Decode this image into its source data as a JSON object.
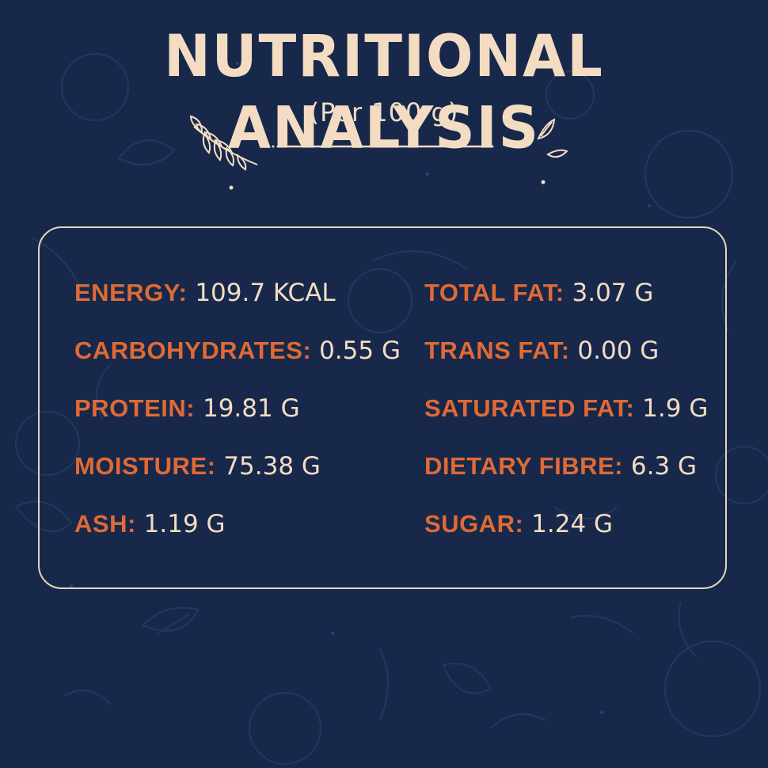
{
  "header": {
    "title": "NUTRITIONAL ANALYSIS",
    "subtitle": "(Per 100 g)"
  },
  "nutrients": {
    "left": [
      {
        "label": "ENERGY:",
        "value": "109.7 KCAL"
      },
      {
        "label": "CARBOHYDRATES:",
        "value": "0.55 G"
      },
      {
        "label": "PROTEIN:",
        "value": "19.81 G"
      },
      {
        "label": "MOISTURE:",
        "value": "75.38 G"
      },
      {
        "label": "ASH:",
        "value": "1.19 G"
      }
    ],
    "right": [
      {
        "label": "TOTAL FAT:",
        "value": "3.07 G"
      },
      {
        "label": "TRANS FAT:",
        "value": "0.00 G"
      },
      {
        "label": "SATURATED FAT:",
        "value": "1.9 G"
      },
      {
        "label": "DIETARY FIBRE:",
        "value": "6.3 G"
      },
      {
        "label": "SUGAR:",
        "value": "1.24 G"
      }
    ]
  },
  "colors": {
    "background": "#17284a",
    "label": "#df6a36",
    "text": "#f3dcc2",
    "border": "#e8d3bc"
  },
  "icons": [
    "leaf-sprig-icon",
    "leaf-pair-icon",
    "food-doodle-pattern"
  ]
}
